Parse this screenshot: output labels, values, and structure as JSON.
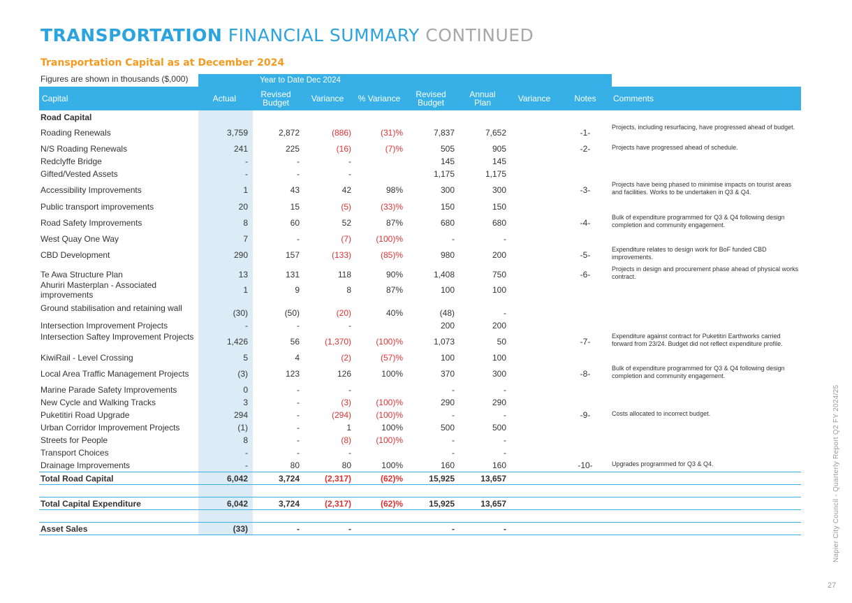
{
  "title": {
    "part1": "TRANSPORTATION",
    "part2": "FINANCIAL SUMMARY",
    "part3": "CONTINUED"
  },
  "subtitle": "Transportation Capital as at December 2024",
  "figures_note": "Figures are shown in thousands ($,000)",
  "ytd_label": "Year to Date  Dec 2024",
  "headers": {
    "capital": "Capital",
    "actual": "Actual",
    "revised_budget_ytd": "Revised\nBudget",
    "variance_ytd": "Variance",
    "pct_variance": "% Variance",
    "revised_budget": "Revised\nBudget",
    "annual_plan": "Annual\nPlan",
    "variance": "Variance",
    "notes": "Notes",
    "comments": "Comments"
  },
  "section_label": "Road Capital",
  "rows": [
    {
      "name": "Roading Renewals",
      "actual": "3,759",
      "rev_budget": "2,872",
      "variance": "(886)",
      "pct": "(31)%",
      "revised": "7,837",
      "annual": "7,652",
      "note": "-1-",
      "comment": "Projects, including resurfacing, have progressed ahead of budget."
    },
    {
      "name": "N/S Roading Renewals",
      "actual": "241",
      "rev_budget": "225",
      "variance": "(16)",
      "pct": "(7)%",
      "revised": "505",
      "annual": "905",
      "note": "-2-",
      "comment": "Projects have progressed ahead of schedule."
    },
    {
      "name": "Redclyffe Bridge",
      "actual": "-",
      "rev_budget": "-",
      "variance": "-",
      "pct": "",
      "revised": "145",
      "annual": "145",
      "note": "",
      "comment": ""
    },
    {
      "name": "Gifted/Vested Assets",
      "actual": "-",
      "rev_budget": "-",
      "variance": "-",
      "pct": "",
      "revised": "1,175",
      "annual": "1,175",
      "note": "",
      "comment": ""
    },
    {
      "name": "Accessibility Improvements",
      "actual": "1",
      "rev_budget": "43",
      "variance": "42",
      "pct": "98%",
      "revised": "300",
      "annual": "300",
      "note": "-3-",
      "comment": "Projects have being phased to minimise impacts on tourist areas and facilities. Works to be undertaken in Q3 & Q4."
    },
    {
      "name": "Public transport improvements",
      "actual": "20",
      "rev_budget": "15",
      "variance": "(5)",
      "pct": "(33)%",
      "revised": "150",
      "annual": "150",
      "note": "",
      "comment": ""
    },
    {
      "name": "Road Safety Improvements",
      "actual": "8",
      "rev_budget": "60",
      "variance": "52",
      "pct": "87%",
      "revised": "680",
      "annual": "680",
      "note": "-4-",
      "comment": "Bulk of expenditure programmed for Q3 & Q4 following design completion and community engagement."
    },
    {
      "name": "West Quay One Way",
      "actual": "7",
      "rev_budget": "-",
      "variance": "(7)",
      "pct": "(100)%",
      "revised": "-",
      "annual": "-",
      "note": "",
      "comment": ""
    },
    {
      "name": "CBD Development",
      "actual": "290",
      "rev_budget": "157",
      "variance": "(133)",
      "pct": "(85)%",
      "revised": "980",
      "annual": "200",
      "note": "-5-",
      "comment": "Expenditure relates to design work for BoF funded CBD improvements."
    },
    {
      "name": "Te Awa Structure Plan",
      "actual": "13",
      "rev_budget": "131",
      "variance": "118",
      "pct": "90%",
      "revised": "1,408",
      "annual": "750",
      "note": "-6-",
      "comment": "Projects in design and procurement phase ahead of physical works contract."
    },
    {
      "name": "Ahuriri Masterplan - Associated improvements",
      "actual": "1",
      "rev_budget": "9",
      "variance": "8",
      "pct": "87%",
      "revised": "100",
      "annual": "100",
      "note": "",
      "comment": ""
    },
    {
      "name": "Ground stabilisation and retaining wall",
      "actual": "(30)",
      "rev_budget": "(50)",
      "variance": "(20)",
      "pct": "40%",
      "revised": "(48)",
      "annual": "-",
      "note": "",
      "comment": ""
    },
    {
      "name": "Intersection Improvement Projects",
      "actual": "-",
      "rev_budget": "-",
      "variance": "-",
      "pct": "",
      "revised": "200",
      "annual": "200",
      "note": "",
      "comment": ""
    },
    {
      "name": "Intersection Saftey Improvement Projects",
      "actual": "1,426",
      "rev_budget": "56",
      "variance": "(1,370)",
      "pct": "(100)%",
      "revised": "1,073",
      "annual": "50",
      "note": "-7-",
      "comment": "Expenditure against contract for Puketitiri Earthworks carried forward from 23/24. Budget did not reflect expenditure profile."
    },
    {
      "name": "KiwiRail - Level Crossing",
      "actual": "5",
      "rev_budget": "4",
      "variance": "(2)",
      "pct": "(57)%",
      "revised": "100",
      "annual": "100",
      "note": "",
      "comment": ""
    },
    {
      "name": "Local Area Traffic Management Projects",
      "actual": "(3)",
      "rev_budget": "123",
      "variance": "126",
      "pct": "100%",
      "revised": "370",
      "annual": "300",
      "note": "-8-",
      "comment": "Bulk of expenditure programmed for Q3 & Q4 following design completion and community engagement."
    },
    {
      "name": "Marine Parade Safety Improvements",
      "actual": "0",
      "rev_budget": "-",
      "variance": "-",
      "pct": "",
      "revised": "-",
      "annual": "-",
      "note": "",
      "comment": ""
    },
    {
      "name": "New Cycle and Walking Tracks",
      "actual": "3",
      "rev_budget": "-",
      "variance": "(3)",
      "pct": "(100)%",
      "revised": "290",
      "annual": "290",
      "note": "",
      "comment": ""
    },
    {
      "name": "Puketitiri Road Upgrade",
      "actual": "294",
      "rev_budget": "-",
      "variance": "(294)",
      "pct": "(100)%",
      "revised": "-",
      "annual": "-",
      "note": "-9-",
      "comment": "Costs allocated to incorrect budget."
    },
    {
      "name": "Urban Corridor Improvement Projects",
      "actual": "(1)",
      "rev_budget": "-",
      "variance": "1",
      "pct": "100%",
      "revised": "500",
      "annual": "500",
      "note": "",
      "comment": ""
    },
    {
      "name": "Streets for People",
      "actual": "8",
      "rev_budget": "-",
      "variance": "(8)",
      "pct": "(100)%",
      "revised": "-",
      "annual": "-",
      "note": "",
      "comment": ""
    },
    {
      "name": "Transport Choices",
      "actual": "-",
      "rev_budget": "-",
      "variance": "-",
      "pct": "",
      "revised": "-",
      "annual": "-",
      "note": "",
      "comment": ""
    },
    {
      "name": "Drainage Improvements",
      "actual": "-",
      "rev_budget": "80",
      "variance": "80",
      "pct": "100%",
      "revised": "160",
      "annual": "160",
      "note": "-10-",
      "comment": "Upgrades programmed for Q3 & Q4."
    }
  ],
  "totals": [
    {
      "name": "Total Road Capital",
      "actual": "6,042",
      "rev_budget": "3,724",
      "variance": "(2,317)",
      "pct": "(62)%",
      "revised": "15,925",
      "annual": "13,657"
    },
    {
      "name": "Total Capital Expenditure",
      "actual": "6,042",
      "rev_budget": "3,724",
      "variance": "(2,317)",
      "pct": "(62)%",
      "revised": "15,925",
      "annual": "13,657"
    },
    {
      "name": "Asset Sales",
      "actual": "(33)",
      "rev_budget": "-",
      "variance": "-",
      "pct": "",
      "revised": "-",
      "annual": "-"
    }
  ],
  "side_text": "Napier City Council - Quarterly Report Q2 FY 2024/25",
  "page_number": "27",
  "colors": {
    "accent": "#36b0e6",
    "title_blue": "#2aa3df",
    "orange": "#f39a1f",
    "negative": "#e03232",
    "actual_col_bg": "#dcecf7"
  }
}
